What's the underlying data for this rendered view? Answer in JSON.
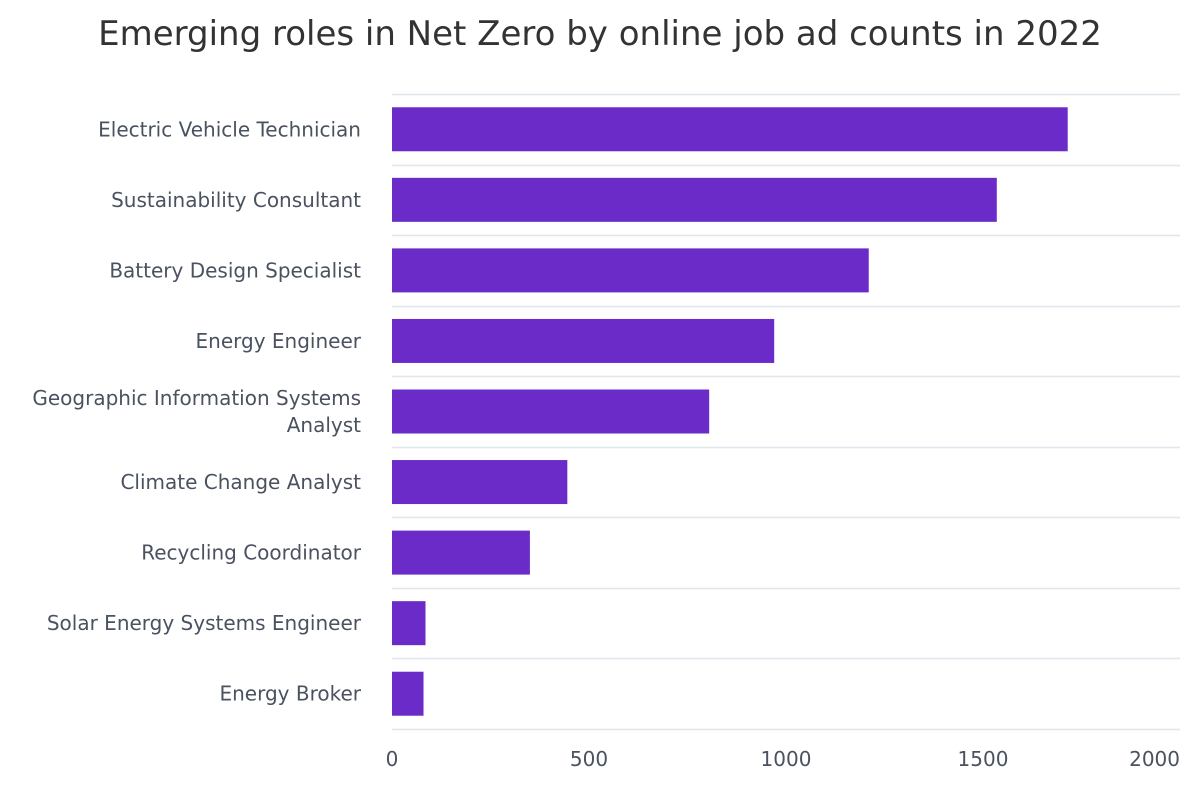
{
  "chart_data": {
    "type": "bar",
    "orientation": "horizontal",
    "title": "Emerging roles in Net Zero by online job ad counts in 2022",
    "categories": [
      [
        "Electric Vehicle Technician"
      ],
      [
        "Sustainability Consultant"
      ],
      [
        "Battery Design Specialist"
      ],
      [
        "Energy Engineer"
      ],
      [
        "Geographic Information Systems",
        "Analyst"
      ],
      [
        "Climate Change Analyst"
      ],
      [
        "Recycling Coordinator"
      ],
      [
        "Solar Energy Systems Engineer"
      ],
      [
        "Energy Broker"
      ]
    ],
    "values": [
      1715,
      1535,
      1210,
      970,
      805,
      445,
      350,
      85,
      80
    ],
    "xlim": [
      0,
      2000
    ],
    "xticks": [
      "0",
      "500",
      "1000",
      "1500",
      "2000"
    ],
    "xlabel": "",
    "ylabel": "",
    "grid": true,
    "legend": "none",
    "bar_color": "#6a2bc8",
    "grid_color": "#dfe6ee"
  }
}
